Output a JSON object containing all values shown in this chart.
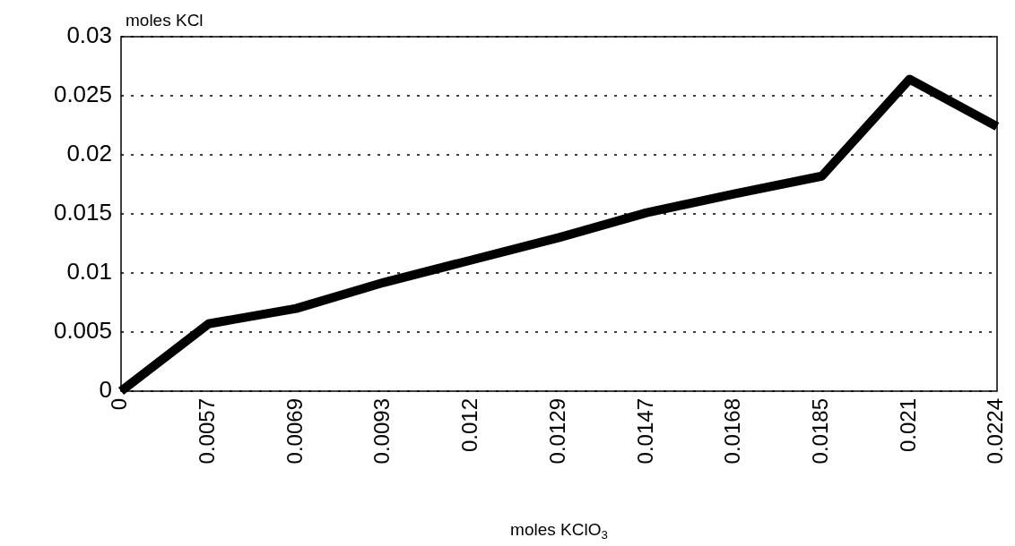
{
  "chart_data": {
    "type": "line",
    "xlabel": "moles KClO$_{3}$",
    "ylabel": "moles KCl",
    "categories": [
      "0",
      "0.0057",
      "0.0069",
      "0.0093",
      "0.012",
      "0.0129",
      "0.0147",
      "0.0168",
      "0.0185",
      "0.021",
      "0.0224"
    ],
    "series": [
      {
        "color": "#000000",
        "values": [
          0,
          0.0057,
          0.007,
          0.0092,
          0.0111,
          0.013,
          0.0151,
          0.0167,
          0.0182,
          0.0264,
          0.0224
        ]
      }
    ],
    "ylim": [
      0,
      0.03
    ],
    "yticks": [
      0,
      0.005,
      0.01,
      0.015,
      0.02,
      0.025,
      0.03
    ],
    "grid": "y",
    "marker": "none",
    "line_style": "solid"
  }
}
